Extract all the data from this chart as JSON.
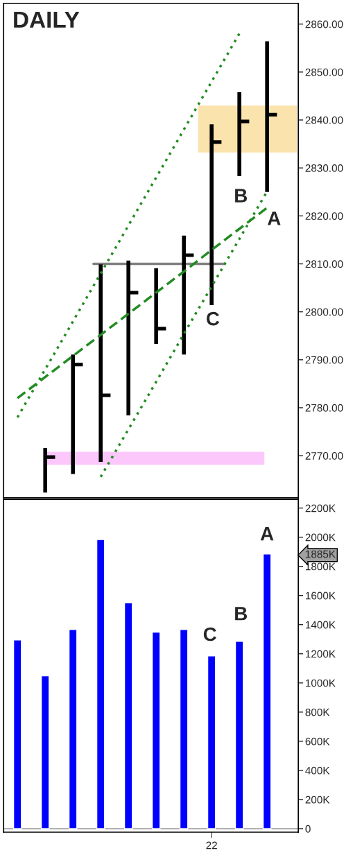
{
  "chart_data": [
    {
      "type": "bar",
      "title": "DAILY",
      "categories": [
        null,
        null,
        null,
        null,
        null,
        null,
        null,
        null,
        null,
        null
      ],
      "base": [
        null,
        2762.3,
        2766.2,
        2768.7,
        2778.4,
        2793.3,
        2791.1,
        2801.4,
        2828.3,
        2825.0
      ],
      "color": "#000000",
      "values": [
        null,
        9.3,
        24.9,
        41.2,
        32.3,
        15.8,
        24.8,
        37.7,
        17.5,
        31.4
      ],
      "series": [
        {
          "type": "scatter",
          "color": "#000000",
          "values": [
            null,
            2769.7,
            2789.0,
            2782.6,
            2804.0,
            2796.5,
            2811.8,
            2835.4,
            2839.7,
            2841.1
          ]
        },
        {
          "type": "line",
          "color": "#228b22",
          "line_style": "dotted",
          "values": [
            2778.0,
            2788.0,
            2798.0,
            2808.0,
            2818.0,
            2828.0,
            2838.0,
            2848.0,
            2858.0,
            null
          ]
        },
        {
          "type": "line",
          "color": "#228b22",
          "line_style": "dashed",
          "values": [
            2782.0,
            2786.4,
            2790.8,
            2795.2,
            2799.6,
            2804.0,
            2808.4,
            2812.9,
            2817.3,
            2821.7
          ]
        },
        {
          "type": "line",
          "color": "#228b22",
          "line_style": "dotted",
          "values": [
            null,
            null,
            null,
            2765.6,
            2775.5,
            2785.4,
            2795.4,
            2805.3,
            2815.2,
            2825.1
          ]
        }
      ],
      "ylim": [
        2761.2,
        2864.3
      ],
      "yticks": [
        {
          "value": 2770,
          "label": "2770.00"
        },
        {
          "value": 2780,
          "label": "2780.00"
        },
        {
          "value": 2790,
          "label": "2790.00"
        },
        {
          "value": 2800,
          "label": "2800.00"
        },
        {
          "value": 2810,
          "label": "2810.00"
        },
        {
          "value": 2820,
          "label": "2820.00"
        },
        {
          "value": 2830,
          "label": "2830.00"
        },
        {
          "value": 2840,
          "label": "2840.00"
        },
        {
          "value": 2850,
          "label": "2850.00"
        },
        {
          "value": 2860,
          "label": "2860.00"
        }
      ],
      "ref_lines": [
        {
          "axis": "y",
          "value": 2810,
          "color": "#808080"
        }
      ],
      "bands": [
        {
          "axis": "y",
          "from": 2833.2,
          "to": 2843.0,
          "color": "#fbe3ae"
        },
        {
          "axis": "y",
          "from": 2768.1,
          "to": 2770.8,
          "color": "#fcc8fc"
        }
      ],
      "annotations": [
        "C",
        "B",
        "A"
      ],
      "tick_labels": "y",
      "grid": false,
      "legend": false
    },
    {
      "type": "bar",
      "color": "#0000ff",
      "categories": [
        null,
        null,
        null,
        null,
        null,
        null,
        null,
        "22",
        null,
        null
      ],
      "values": [
        1295000,
        1049000,
        1366000,
        1984000,
        1549000,
        1349000,
        1366000,
        1185000,
        1285000,
        1885000
      ],
      "ylim": [
        -24000,
        2259000
      ],
      "yticks": [
        0,
        {
          "value": 200000,
          "label": "200K"
        },
        {
          "value": 400000,
          "label": "400K"
        },
        {
          "value": 600000,
          "label": "600K"
        },
        {
          "value": 800000,
          "label": "800K"
        },
        {
          "value": 1000000,
          "label": "1000K"
        },
        {
          "value": 1200000,
          "label": "1200K"
        },
        {
          "value": 1400000,
          "label": "1400K"
        },
        {
          "value": 1600000,
          "label": "1600K"
        },
        {
          "value": 1800000,
          "label": "1800K"
        },
        {
          "value": 1885000,
          "label": "1885K"
        },
        {
          "value": 2000000,
          "label": "2000K"
        },
        {
          "value": 2200000,
          "label": "2200K"
        }
      ],
      "ref_lines": [
        {
          "axis": "y",
          "value": 0,
          "color": "#b0b0b0"
        }
      ],
      "annotations": [
        "C",
        "B",
        "A"
      ],
      "grid": false,
      "legend": false
    }
  ]
}
